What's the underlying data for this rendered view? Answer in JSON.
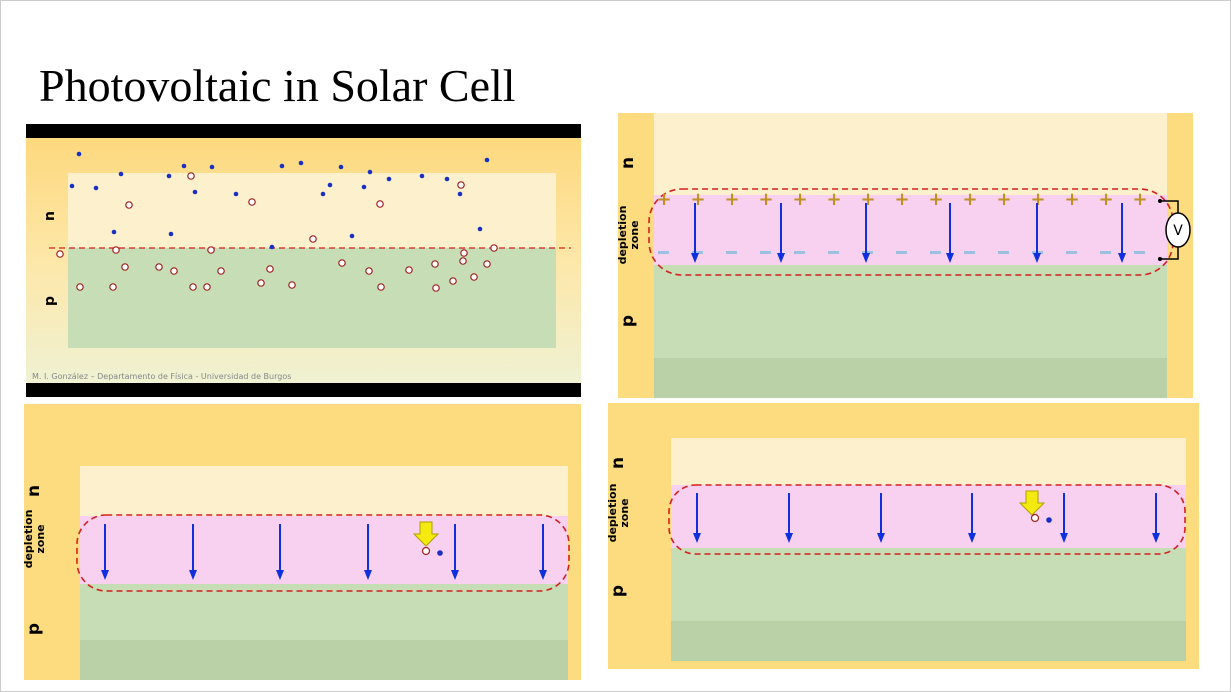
{
  "slide": {
    "title": "Photovoltaic in Solar Cell"
  },
  "panel1": {
    "n_label": "n",
    "p_label": "p",
    "credit": "M. I. González – Departamento de Física - Universidad de Burgos"
  },
  "panel2": {
    "n_label": "n",
    "p_label": "p",
    "depletion_label": "depletion",
    "zone_label": "zone",
    "voltmeter_label": "V",
    "plus_sign": "+"
  },
  "panel3": {
    "n_label": "n",
    "p_label": "p",
    "depletion_label": "depletion",
    "zone_label": "zone"
  },
  "panel4": {
    "n_label": "n",
    "p_label": "p",
    "depletion_label": "depletion",
    "zone_label": "zone"
  },
  "colors": {
    "electron": "#1a2fc4",
    "hole": "#a02020",
    "field_arrow": "#1030e0",
    "boundary": "#d42020",
    "n_region": "#fdf0cc",
    "p_region": "#c6ddb5",
    "gold": "#fddc80",
    "photon": "#f5ea10"
  }
}
